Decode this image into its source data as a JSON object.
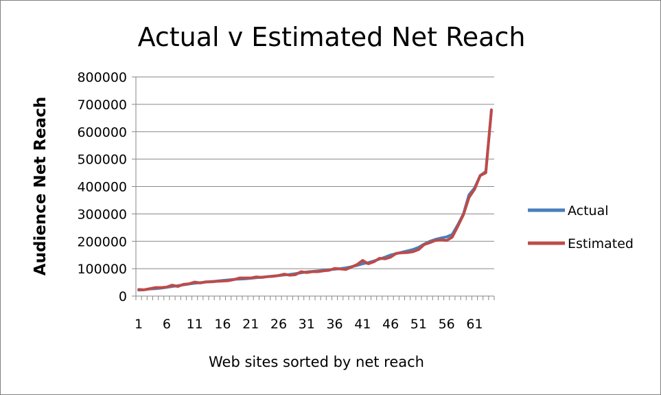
{
  "chart_data": {
    "type": "line",
    "title": "Actual v Estimated Net Reach",
    "xlabel": "Web sites sorted by net reach",
    "ylabel": "Audience Net Reach",
    "ylim": [
      0,
      800000
    ],
    "y_ticks": [
      "0",
      "100000",
      "200000",
      "300000",
      "400000",
      "500000",
      "600000",
      "700000",
      "800000"
    ],
    "x_ticks": [
      "1",
      "6",
      "11",
      "16",
      "21",
      "26",
      "31",
      "36",
      "41",
      "46",
      "51",
      "56",
      "61"
    ],
    "grid": true,
    "legend_position": "right",
    "x": [
      1,
      2,
      3,
      4,
      5,
      6,
      7,
      8,
      9,
      10,
      11,
      12,
      13,
      14,
      15,
      16,
      17,
      18,
      19,
      20,
      21,
      22,
      23,
      24,
      25,
      26,
      27,
      28,
      29,
      30,
      31,
      32,
      33,
      34,
      35,
      36,
      37,
      38,
      39,
      40,
      41,
      42,
      43,
      44,
      45,
      46,
      47,
      48,
      49,
      50,
      51,
      52,
      53,
      54,
      55,
      56,
      57,
      58,
      59,
      60,
      61,
      62,
      63,
      64
    ],
    "series": [
      {
        "name": "Actual",
        "color": "#4a7ebb",
        "values": [
          22000,
          23000,
          26000,
          27000,
          29000,
          32000,
          35000,
          38000,
          41000,
          44000,
          47000,
          49000,
          51000,
          53000,
          55000,
          57000,
          59000,
          61000,
          62000,
          63000,
          65000,
          67000,
          69000,
          71000,
          73000,
          75000,
          77000,
          79000,
          82000,
          85000,
          88000,
          90000,
          92000,
          94000,
          96000,
          98000,
          100000,
          103000,
          107000,
          112000,
          118000,
          122000,
          128000,
          135000,
          142000,
          150000,
          155000,
          160000,
          165000,
          170000,
          178000,
          190000,
          200000,
          207000,
          212000,
          216000,
          225000,
          260000,
          300000,
          370000,
          395000,
          440000,
          455000,
          675000
        ]
      },
      {
        "name": "Estimated",
        "color": "#be4b48",
        "values": [
          24000,
          23000,
          27000,
          31000,
          31000,
          33000,
          40000,
          35000,
          43000,
          45000,
          51000,
          48000,
          52000,
          52000,
          54000,
          55000,
          56000,
          60000,
          66000,
          66000,
          66000,
          70000,
          68000,
          71000,
          72000,
          75000,
          80000,
          76000,
          78000,
          89000,
          86000,
          89000,
          89000,
          92000,
          94000,
          101000,
          99000,
          97000,
          106000,
          115000,
          130000,
          118000,
          125000,
          138000,
          136000,
          142000,
          156000,
          158000,
          159000,
          162000,
          170000,
          188000,
          195000,
          203000,
          205000,
          203000,
          215000,
          255000,
          297000,
          360000,
          390000,
          440000,
          450000,
          680000
        ]
      }
    ]
  }
}
